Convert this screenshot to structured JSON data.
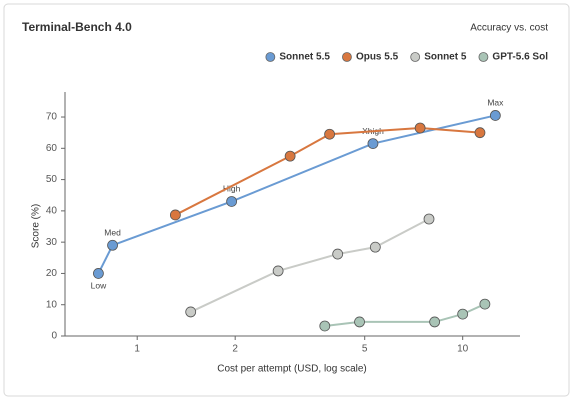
{
  "chart_data": {
    "type": "line",
    "title": "Terminal-Bench 4.0",
    "subtitle": "Accuracy vs. cost",
    "x_label": "Cost per attempt (USD, log scale)",
    "y_label": "Score (%)",
    "x_scale": "log",
    "xlim": [
      0.6,
      15
    ],
    "ylim": [
      0,
      78
    ],
    "xticks": [
      1,
      2,
      5,
      10
    ],
    "yticks": [
      0,
      10,
      20,
      30,
      40,
      50,
      60,
      70
    ],
    "grid": false,
    "legend": "top-right",
    "series": [
      {
        "name": "Sonnet 5.5",
        "color": "#6a9bd3",
        "x": [
          0.76,
          0.84,
          1.95,
          5.3,
          12.6
        ],
        "values": [
          20,
          29,
          43,
          61.5,
          70.5
        ],
        "labels": [
          "Low",
          "Med",
          "High",
          "Xhigh",
          "Max"
        ]
      },
      {
        "name": "Opus 5.5",
        "color": "#d8773f",
        "x": [
          1.31,
          2.95,
          3.9,
          7.4,
          11.3
        ],
        "values": [
          38.7,
          57.5,
          64.5,
          66.5,
          65
        ]
      },
      {
        "name": "Sonnet 5",
        "color": "#c9cbc7",
        "x": [
          1.46,
          2.71,
          4.13,
          5.39,
          7.88
        ],
        "values": [
          7.7,
          20.8,
          26.2,
          28.4,
          37.4
        ]
      },
      {
        "name": "GPT-5.6 Sol",
        "color": "#a9c4b6",
        "x": [
          3.77,
          4.82,
          8.2,
          10,
          11.7
        ],
        "values": [
          3.2,
          4.5,
          4.5,
          7,
          10.2
        ]
      }
    ]
  }
}
